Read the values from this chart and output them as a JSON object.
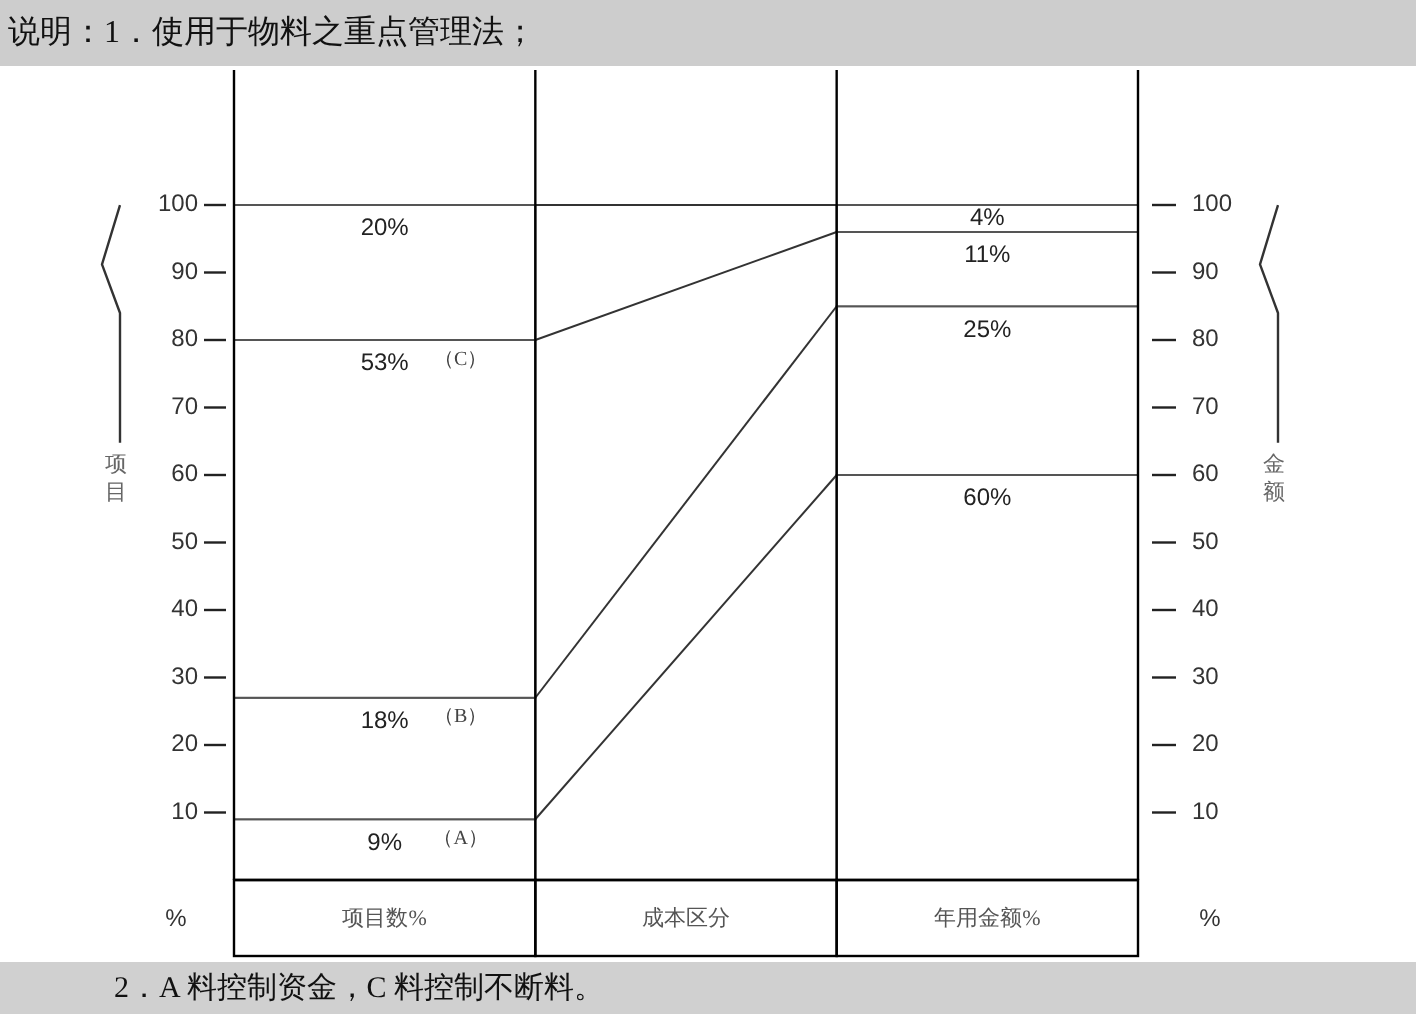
{
  "chart_data": {
    "type": "bar",
    "stacked": true,
    "title": "说明：1．使用于物料之重点管理法；",
    "ylabel": "项目",
    "y2label": "金额",
    "categories": [
      "项目数%",
      "成本区分",
      "年用金额%"
    ],
    "series": [
      {
        "name": "（A）",
        "color": "#ffffff",
        "values": [
          9,
          null,
          60
        ],
        "value_labels": [
          "9%",
          null,
          "60%"
        ]
      },
      {
        "name": "（B）",
        "color": "#ffffff",
        "values": [
          18,
          null,
          25
        ],
        "value_labels": [
          "18%",
          null,
          "25%"
        ]
      },
      {
        "name": "（C）",
        "color": "#ffffff",
        "values": [
          53,
          null,
          11
        ],
        "value_labels": [
          "53%",
          null,
          "11%"
        ]
      },
      {
        "color": "#ffffff",
        "values": [
          20,
          null,
          4
        ],
        "value_labels": [
          "20%",
          null,
          "4%"
        ]
      }
    ],
    "ylim": [
      0,
      120
    ],
    "yticks": [
      10,
      20,
      30,
      40,
      50,
      60,
      70,
      80,
      90,
      100
    ],
    "y2lim": [
      0,
      120
    ],
    "y2ticks": [
      10,
      20,
      30,
      40,
      50,
      60,
      70,
      80,
      90,
      100
    ],
    "annotations": [
      "%",
      "%",
      "2．A 料控制资金，C 料控制不断料。"
    ]
  }
}
